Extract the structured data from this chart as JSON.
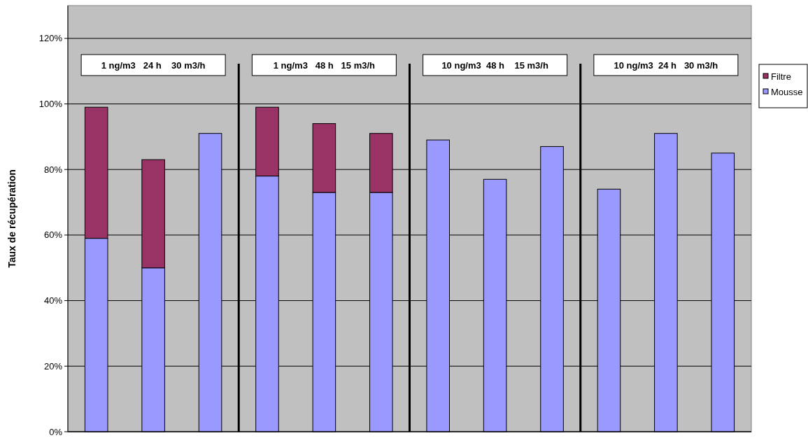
{
  "chart_data": {
    "type": "bar",
    "stacked": true,
    "ylabel": "Taux de récupération",
    "categories": [
      null,
      null,
      null,
      null,
      null,
      null,
      null,
      null,
      null,
      null,
      null,
      null
    ],
    "series": [
      {
        "name": "Mousse",
        "color": "#9999ff",
        "values": [
          59,
          50,
          91,
          78,
          73,
          73,
          89,
          77,
          87,
          74,
          91,
          85
        ]
      },
      {
        "name": "Filtre",
        "color": "#993366",
        "values": [
          40,
          33,
          null,
          21,
          21,
          18,
          null,
          null,
          null,
          null,
          null,
          null
        ]
      }
    ],
    "ylim": [
      0,
      130
    ],
    "yticks": [
      {
        "value": 0,
        "label": "0%"
      },
      {
        "value": 20,
        "label": "20%"
      },
      {
        "value": 40,
        "label": "40%"
      },
      {
        "value": 60,
        "label": "60%"
      },
      {
        "value": 80,
        "label": "80%"
      },
      {
        "value": 100,
        "label": "100%"
      },
      {
        "value": 120,
        "label": "120%"
      }
    ],
    "grid": "y",
    "legend": "right",
    "annotations": [
      "1 ng/m3   24 h    30 m3/h",
      "1 ng/m3   48 h   15 m3/h",
      "10 ng/m3  48 h    15 m3/h",
      "10 ng/m3  24 h   30 m3/h"
    ]
  }
}
